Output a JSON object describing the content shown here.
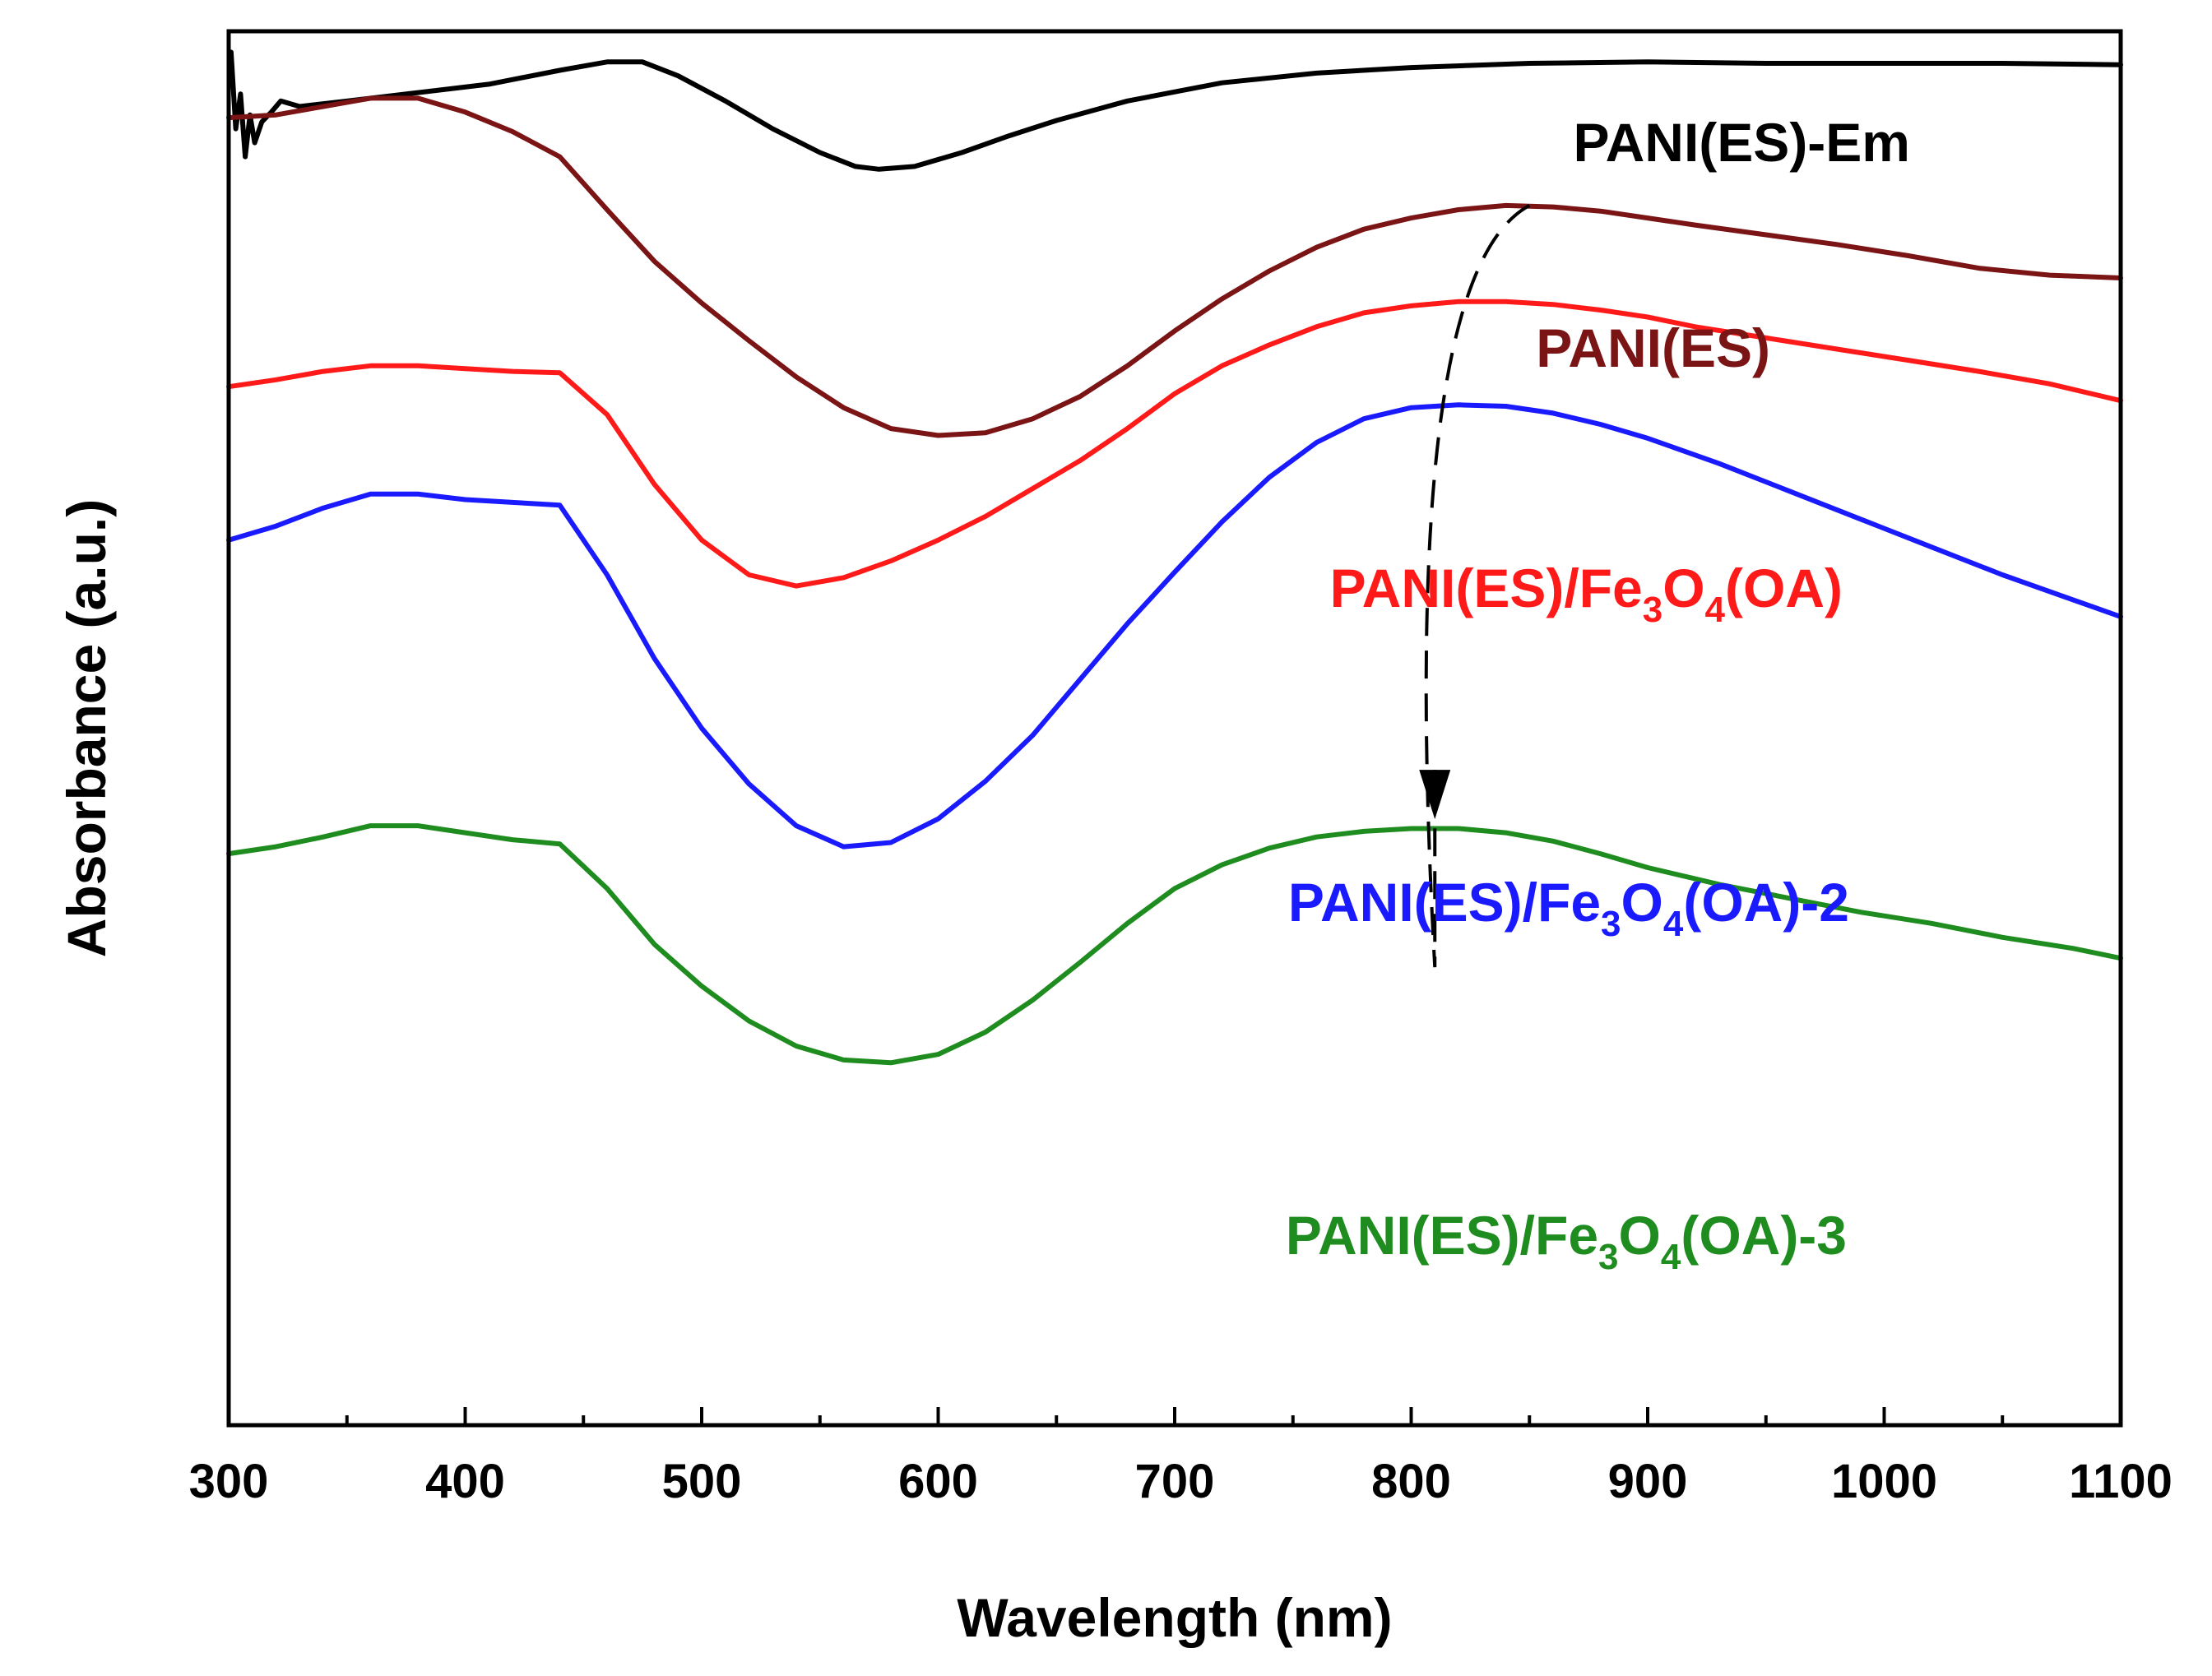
{
  "chart_data": {
    "type": "line",
    "title": "",
    "xlabel": "Wavelength (nm)",
    "ylabel": "Absorbance (a.u.)",
    "xlim": [
      300,
      1100
    ],
    "ylim": [
      0,
      10
    ],
    "x_ticks": [
      300,
      400,
      500,
      600,
      700,
      800,
      900,
      1000,
      1100
    ],
    "y_ticks_labeled": false,
    "grid": false,
    "legend": "inline labels next to each curve",
    "series": [
      {
        "name": "PANI(ES)-Em",
        "label": {
          "prefix": "PANI(ES)-Em",
          "parts": []
        },
        "color": "#000000",
        "points": [
          [
            301,
            9.85
          ],
          [
            303,
            9.3
          ],
          [
            305,
            9.55
          ],
          [
            307,
            9.1
          ],
          [
            309,
            9.4
          ],
          [
            311,
            9.2
          ],
          [
            314,
            9.35
          ],
          [
            318,
            9.42
          ],
          [
            322,
            9.5
          ],
          [
            326,
            9.48
          ],
          [
            330,
            9.46
          ],
          [
            350,
            9.5
          ],
          [
            380,
            9.56
          ],
          [
            410,
            9.62
          ],
          [
            440,
            9.72
          ],
          [
            460,
            9.78
          ],
          [
            475,
            9.78
          ],
          [
            490,
            9.68
          ],
          [
            510,
            9.5
          ],
          [
            530,
            9.3
          ],
          [
            550,
            9.13
          ],
          [
            565,
            9.03
          ],
          [
            575,
            9.01
          ],
          [
            590,
            9.03
          ],
          [
            610,
            9.13
          ],
          [
            630,
            9.25
          ],
          [
            650,
            9.36
          ],
          [
            680,
            9.5
          ],
          [
            720,
            9.63
          ],
          [
            760,
            9.7
          ],
          [
            800,
            9.74
          ],
          [
            850,
            9.77
          ],
          [
            900,
            9.78
          ],
          [
            950,
            9.77
          ],
          [
            1000,
            9.77
          ],
          [
            1050,
            9.77
          ],
          [
            1100,
            9.76
          ]
        ]
      },
      {
        "name": "PANI(ES)",
        "label": {
          "prefix": "PANI(ES)",
          "parts": []
        },
        "color": "#7b1414",
        "points": [
          [
            300,
            9.38
          ],
          [
            320,
            9.4
          ],
          [
            340,
            9.46
          ],
          [
            360,
            9.52
          ],
          [
            380,
            9.52
          ],
          [
            400,
            9.42
          ],
          [
            420,
            9.28
          ],
          [
            440,
            9.1
          ],
          [
            460,
            8.72
          ],
          [
            480,
            8.35
          ],
          [
            500,
            8.05
          ],
          [
            520,
            7.78
          ],
          [
            540,
            7.52
          ],
          [
            560,
            7.3
          ],
          [
            580,
            7.15
          ],
          [
            600,
            7.1
          ],
          [
            620,
            7.12
          ],
          [
            640,
            7.22
          ],
          [
            660,
            7.38
          ],
          [
            680,
            7.6
          ],
          [
            700,
            7.85
          ],
          [
            720,
            8.08
          ],
          [
            740,
            8.28
          ],
          [
            760,
            8.45
          ],
          [
            780,
            8.58
          ],
          [
            800,
            8.66
          ],
          [
            820,
            8.72
          ],
          [
            840,
            8.75
          ],
          [
            860,
            8.74
          ],
          [
            880,
            8.71
          ],
          [
            900,
            8.66
          ],
          [
            920,
            8.61
          ],
          [
            950,
            8.54
          ],
          [
            980,
            8.47
          ],
          [
            1010,
            8.39
          ],
          [
            1040,
            8.3
          ],
          [
            1070,
            8.25
          ],
          [
            1100,
            8.23
          ]
        ]
      },
      {
        "name": "PANI(ES)/Fe3O4(OA)",
        "label": {
          "prefix": "PANI(ES)/Fe",
          "parts": [
            [
              "3",
              "sub"
            ],
            [
              "O",
              ""
            ],
            [
              "4",
              "sub"
            ],
            [
              "(OA)",
              ""
            ]
          ]
        },
        "color": "#ff1a1a",
        "points": [
          [
            300,
            7.45
          ],
          [
            320,
            7.5
          ],
          [
            340,
            7.56
          ],
          [
            360,
            7.6
          ],
          [
            380,
            7.6
          ],
          [
            400,
            7.58
          ],
          [
            420,
            7.56
          ],
          [
            440,
            7.55
          ],
          [
            460,
            7.25
          ],
          [
            480,
            6.75
          ],
          [
            500,
            6.35
          ],
          [
            520,
            6.1
          ],
          [
            540,
            6.02
          ],
          [
            560,
            6.08
          ],
          [
            580,
            6.2
          ],
          [
            600,
            6.35
          ],
          [
            620,
            6.52
          ],
          [
            640,
            6.72
          ],
          [
            660,
            6.92
          ],
          [
            680,
            7.15
          ],
          [
            700,
            7.4
          ],
          [
            720,
            7.6
          ],
          [
            740,
            7.75
          ],
          [
            760,
            7.88
          ],
          [
            780,
            7.98
          ],
          [
            800,
            8.03
          ],
          [
            820,
            8.06
          ],
          [
            840,
            8.06
          ],
          [
            860,
            8.04
          ],
          [
            880,
            8.0
          ],
          [
            900,
            7.95
          ],
          [
            920,
            7.88
          ],
          [
            950,
            7.8
          ],
          [
            980,
            7.72
          ],
          [
            1010,
            7.64
          ],
          [
            1040,
            7.56
          ],
          [
            1070,
            7.47
          ],
          [
            1100,
            7.35
          ]
        ]
      },
      {
        "name": "PANI(ES)/Fe3O4(OA)-2",
        "label": {
          "prefix": "PANI(ES)/Fe",
          "parts": [
            [
              "3",
              "sub"
            ],
            [
              "O",
              ""
            ],
            [
              "4",
              "sub"
            ],
            [
              "(OA)-2",
              ""
            ]
          ]
        },
        "color": "#1a1aff",
        "points": [
          [
            300,
            6.35
          ],
          [
            320,
            6.45
          ],
          [
            340,
            6.58
          ],
          [
            360,
            6.68
          ],
          [
            380,
            6.68
          ],
          [
            400,
            6.64
          ],
          [
            420,
            6.62
          ],
          [
            440,
            6.6
          ],
          [
            460,
            6.1
          ],
          [
            480,
            5.5
          ],
          [
            500,
            5.0
          ],
          [
            520,
            4.6
          ],
          [
            540,
            4.3
          ],
          [
            560,
            4.15
          ],
          [
            580,
            4.18
          ],
          [
            600,
            4.35
          ],
          [
            620,
            4.62
          ],
          [
            640,
            4.95
          ],
          [
            660,
            5.35
          ],
          [
            680,
            5.75
          ],
          [
            700,
            6.12
          ],
          [
            720,
            6.48
          ],
          [
            740,
            6.8
          ],
          [
            760,
            7.05
          ],
          [
            780,
            7.22
          ],
          [
            800,
            7.3
          ],
          [
            820,
            7.32
          ],
          [
            840,
            7.31
          ],
          [
            860,
            7.26
          ],
          [
            880,
            7.18
          ],
          [
            900,
            7.08
          ],
          [
            930,
            6.9
          ],
          [
            960,
            6.7
          ],
          [
            990,
            6.5
          ],
          [
            1020,
            6.3
          ],
          [
            1050,
            6.1
          ],
          [
            1080,
            5.92
          ],
          [
            1100,
            5.8
          ]
        ]
      },
      {
        "name": "PANI(ES)/Fe3O4(OA)-3",
        "label": {
          "prefix": "PANI(ES)/Fe",
          "parts": [
            [
              "3",
              "sub"
            ],
            [
              "O",
              ""
            ],
            [
              "4",
              "sub"
            ],
            [
              "(OA)-3",
              ""
            ]
          ]
        },
        "color": "#1e8c1e",
        "points": [
          [
            300,
            4.1
          ],
          [
            320,
            4.15
          ],
          [
            340,
            4.22
          ],
          [
            360,
            4.3
          ],
          [
            380,
            4.3
          ],
          [
            400,
            4.25
          ],
          [
            420,
            4.2
          ],
          [
            440,
            4.17
          ],
          [
            460,
            3.85
          ],
          [
            480,
            3.45
          ],
          [
            500,
            3.15
          ],
          [
            520,
            2.9
          ],
          [
            540,
            2.72
          ],
          [
            560,
            2.62
          ],
          [
            580,
            2.6
          ],
          [
            600,
            2.66
          ],
          [
            620,
            2.82
          ],
          [
            640,
            3.05
          ],
          [
            660,
            3.32
          ],
          [
            680,
            3.6
          ],
          [
            700,
            3.85
          ],
          [
            720,
            4.02
          ],
          [
            740,
            4.14
          ],
          [
            760,
            4.22
          ],
          [
            780,
            4.26
          ],
          [
            800,
            4.28
          ],
          [
            820,
            4.28
          ],
          [
            840,
            4.25
          ],
          [
            860,
            4.19
          ],
          [
            880,
            4.1
          ],
          [
            900,
            4.0
          ],
          [
            930,
            3.88
          ],
          [
            960,
            3.78
          ],
          [
            990,
            3.68
          ],
          [
            1020,
            3.6
          ],
          [
            1050,
            3.5
          ],
          [
            1080,
            3.42
          ],
          [
            1100,
            3.35
          ]
        ]
      }
    ],
    "annotations": [
      {
        "type": "dashed-arrow",
        "from": [
          850,
          8.75
        ],
        "to": [
          810,
          4.3
        ],
        "via": [
          825,
          8.0
        ],
        "color": "#000000"
      }
    ]
  }
}
